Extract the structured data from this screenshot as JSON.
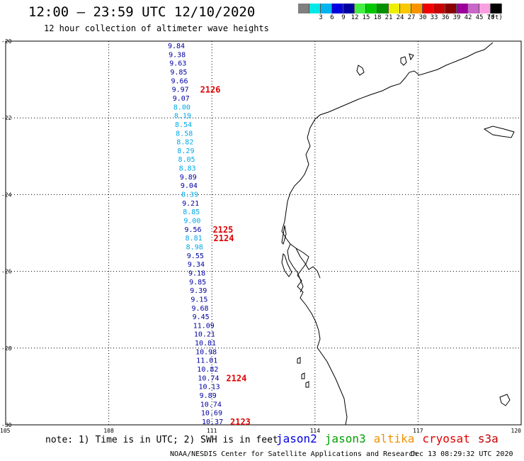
{
  "header": {
    "title": "12:00 – 23:59 UTC 12/10/2020",
    "subtitle": "12 hour collection of altimeter wave heights"
  },
  "legend": {
    "unit": "(ft)",
    "colors": [
      "#808080",
      "#00e8e8",
      "#00b4f0",
      "#0000e0",
      "#0000a0",
      "#44ee44",
      "#00c800",
      "#009000",
      "#eeee00",
      "#f8c800",
      "#f89400",
      "#f00000",
      "#c80000",
      "#880000",
      "#980098",
      "#c868c8",
      "#f8a0e0",
      "#000000"
    ],
    "labels": [
      "3",
      "6",
      "9",
      "12",
      "15",
      "18",
      "21",
      "24",
      "27",
      "30",
      "33",
      "36",
      "39",
      "42",
      "45",
      "70"
    ]
  },
  "axes": {
    "lat_labels": [
      "-20",
      "-22",
      "-24",
      "-26",
      "-28",
      "-30"
    ],
    "lon_labels": [
      "105",
      "108",
      "111",
      "114",
      "117",
      "120"
    ]
  },
  "colors": {
    "dark_blue": "#0000a0",
    "light_blue": "#00a8e8",
    "red": "#e00000"
  },
  "track_readings": [
    {
      "v": "9.84",
      "c": "dark_blue"
    },
    {
      "v": "9.38",
      "c": "dark_blue"
    },
    {
      "v": "9.63",
      "c": "dark_blue"
    },
    {
      "v": "9.85",
      "c": "dark_blue"
    },
    {
      "v": "9.66",
      "c": "dark_blue"
    },
    {
      "v": "9.97",
      "c": "dark_blue"
    },
    {
      "v": "9.07",
      "c": "dark_blue"
    },
    {
      "v": "8.00",
      "c": "light_blue"
    },
    {
      "v": "8.19",
      "c": "light_blue"
    },
    {
      "v": "8.54",
      "c": "light_blue"
    },
    {
      "v": "8.58",
      "c": "light_blue"
    },
    {
      "v": "8.82",
      "c": "light_blue"
    },
    {
      "v": "8.29",
      "c": "light_blue"
    },
    {
      "v": "8.05",
      "c": "light_blue"
    },
    {
      "v": "8.83",
      "c": "light_blue"
    },
    {
      "v": "9.89",
      "c": "dark_blue"
    },
    {
      "v": "9.04",
      "c": "dark_blue"
    },
    {
      "v": "8.39",
      "c": "light_blue"
    },
    {
      "v": "9.21",
      "c": "dark_blue"
    },
    {
      "v": "8.85",
      "c": "light_blue"
    },
    {
      "v": "9.00",
      "c": "light_blue"
    },
    {
      "v": "9.56",
      "c": "dark_blue"
    },
    {
      "v": "8.81",
      "c": "light_blue"
    },
    {
      "v": "8.98",
      "c": "light_blue"
    },
    {
      "v": "9.55",
      "c": "dark_blue"
    },
    {
      "v": "9.34",
      "c": "dark_blue"
    },
    {
      "v": "9.18",
      "c": "dark_blue"
    },
    {
      "v": "9.85",
      "c": "dark_blue"
    },
    {
      "v": "9.39",
      "c": "dark_blue"
    },
    {
      "v": "9.15",
      "c": "dark_blue"
    },
    {
      "v": "9.68",
      "c": "dark_blue"
    },
    {
      "v": "9.45",
      "c": "dark_blue"
    },
    {
      "v": "11.09",
      "c": "dark_blue"
    },
    {
      "v": "10.21",
      "c": "dark_blue"
    },
    {
      "v": "10.81",
      "c": "dark_blue"
    },
    {
      "v": "10.98",
      "c": "dark_blue"
    },
    {
      "v": "11.01",
      "c": "dark_blue"
    },
    {
      "v": "10.82",
      "c": "dark_blue"
    },
    {
      "v": "10.74",
      "c": "dark_blue"
    },
    {
      "v": "10.13",
      "c": "dark_blue"
    },
    {
      "v": "9.89",
      "c": "dark_blue"
    },
    {
      "v": "10.74",
      "c": "dark_blue"
    },
    {
      "v": "10.69",
      "c": "dark_blue"
    },
    {
      "v": "10.37",
      "c": "dark_blue"
    }
  ],
  "pass_labels": [
    {
      "text": "2126",
      "row": 5
    },
    {
      "text": "2125",
      "row": 21
    },
    {
      "text": "2124",
      "row": 22
    },
    {
      "text": "2124",
      "row": 38
    },
    {
      "text": "2123",
      "row": 43
    }
  ],
  "note": "note: 1) Time is in UTC; 2) SWH is in feet",
  "satellites": [
    {
      "name": "jason2",
      "color": "#0000e0"
    },
    {
      "name": "jason3",
      "color": "#00a000"
    },
    {
      "name": "altika",
      "color": "#f09000"
    },
    {
      "name": "cryosat",
      "color": "#e00000"
    },
    {
      "name": "s3a",
      "color": "#c00000"
    }
  ],
  "credit": "NOAA/NESDIS Center for Satellite Applications and Research",
  "timestamp": "Dec 13 08:29:32 UTC 2020"
}
